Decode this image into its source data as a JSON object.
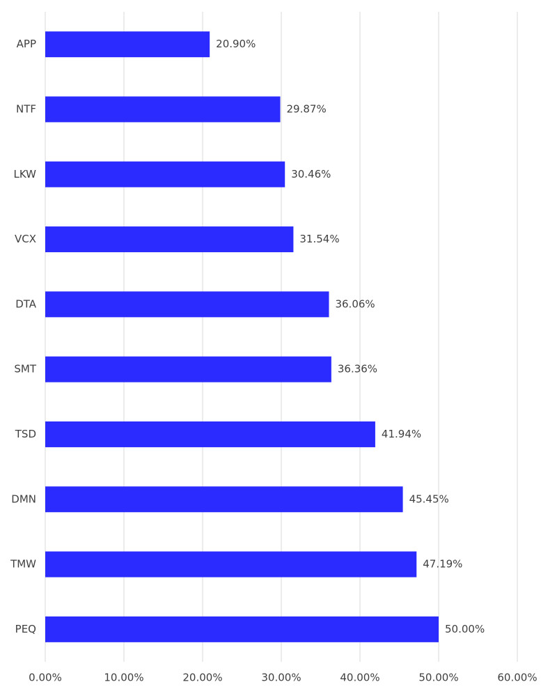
{
  "chart_data": {
    "type": "bar",
    "orientation": "horizontal",
    "categories": [
      "APP",
      "NTF",
      "LKW",
      "VCX",
      "DTA",
      "SMT",
      "TSD",
      "DMN",
      "TMW",
      "PEQ"
    ],
    "values": [
      20.9,
      29.87,
      30.46,
      31.54,
      36.06,
      36.36,
      41.94,
      45.45,
      47.19,
      50.0
    ],
    "value_labels": [
      "20.90%",
      "29.87%",
      "30.46%",
      "31.54%",
      "36.06%",
      "36.36%",
      "41.94%",
      "45.45%",
      "47.19%",
      "50.00%"
    ],
    "color": "#2b2bff",
    "xlim": [
      0,
      60
    ],
    "xticks": [
      {
        "value": 0,
        "label": "0.00%"
      },
      {
        "value": 10,
        "label": "10.00%"
      },
      {
        "value": 20,
        "label": "20.00%"
      },
      {
        "value": 30,
        "label": "30.00%"
      },
      {
        "value": 40,
        "label": "40.00%"
      },
      {
        "value": 50,
        "label": "50.00%"
      },
      {
        "value": 60,
        "label": "60.00%"
      }
    ],
    "grid": true
  }
}
